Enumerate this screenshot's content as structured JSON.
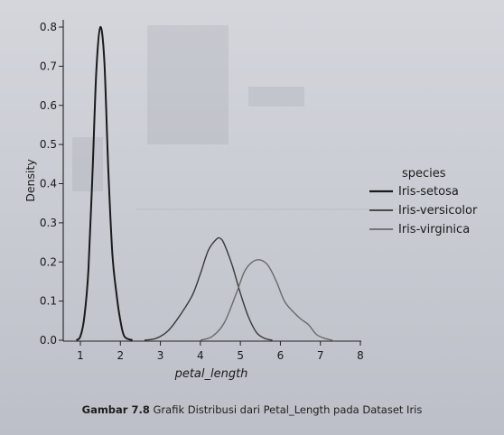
{
  "chart_data": {
    "type": "line",
    "subtype": "kde-density",
    "title": "",
    "xlabel": "petal_length",
    "ylabel": "Density",
    "xlim": [
      0.7,
      8.0
    ],
    "ylim": [
      0.0,
      0.83
    ],
    "xticks": [
      "1",
      "2",
      "3",
      "4",
      "5",
      "6",
      "7",
      "8"
    ],
    "yticks": [
      "0.0",
      "0.1",
      "0.2",
      "0.3",
      "0.4",
      "0.5",
      "0.6",
      "0.7",
      "0.8"
    ],
    "legend": {
      "title": "species",
      "placement": "right",
      "entries": [
        "Iris-setosa",
        "Iris-versicolor",
        "Iris-virginica"
      ]
    },
    "series": [
      {
        "name": "Iris-setosa",
        "color": "#1a1a1a",
        "points": [
          [
            0.9,
            0.0
          ],
          [
            1.0,
            0.01
          ],
          [
            1.1,
            0.06
          ],
          [
            1.2,
            0.18
          ],
          [
            1.3,
            0.42
          ],
          [
            1.4,
            0.69
          ],
          [
            1.5,
            0.8
          ],
          [
            1.6,
            0.71
          ],
          [
            1.7,
            0.43
          ],
          [
            1.8,
            0.22
          ],
          [
            1.9,
            0.12
          ],
          [
            2.0,
            0.05
          ],
          [
            2.1,
            0.01
          ],
          [
            2.3,
            0.0
          ]
        ]
      },
      {
        "name": "Iris-versicolor",
        "color": "#3a3a3a",
        "points": [
          [
            2.6,
            0.0
          ],
          [
            2.9,
            0.005
          ],
          [
            3.2,
            0.025
          ],
          [
            3.5,
            0.065
          ],
          [
            3.8,
            0.115
          ],
          [
            4.0,
            0.17
          ],
          [
            4.2,
            0.23
          ],
          [
            4.4,
            0.258
          ],
          [
            4.5,
            0.26
          ],
          [
            4.6,
            0.245
          ],
          [
            4.8,
            0.19
          ],
          [
            5.0,
            0.12
          ],
          [
            5.2,
            0.06
          ],
          [
            5.4,
            0.02
          ],
          [
            5.6,
            0.005
          ],
          [
            5.8,
            0.0
          ]
        ]
      },
      {
        "name": "Iris-virginica",
        "color": "#6a6a6a",
        "points": [
          [
            4.0,
            0.0
          ],
          [
            4.3,
            0.01
          ],
          [
            4.6,
            0.045
          ],
          [
            4.9,
            0.12
          ],
          [
            5.1,
            0.175
          ],
          [
            5.3,
            0.2
          ],
          [
            5.5,
            0.205
          ],
          [
            5.7,
            0.19
          ],
          [
            5.9,
            0.15
          ],
          [
            6.1,
            0.1
          ],
          [
            6.3,
            0.075
          ],
          [
            6.5,
            0.055
          ],
          [
            6.7,
            0.04
          ],
          [
            6.9,
            0.015
          ],
          [
            7.1,
            0.005
          ],
          [
            7.3,
            0.0
          ]
        ]
      }
    ]
  },
  "caption": {
    "label": "Gambar 7.8",
    "text": "Grafik Distribusi dari Petal_Length pada Dataset Iris"
  }
}
